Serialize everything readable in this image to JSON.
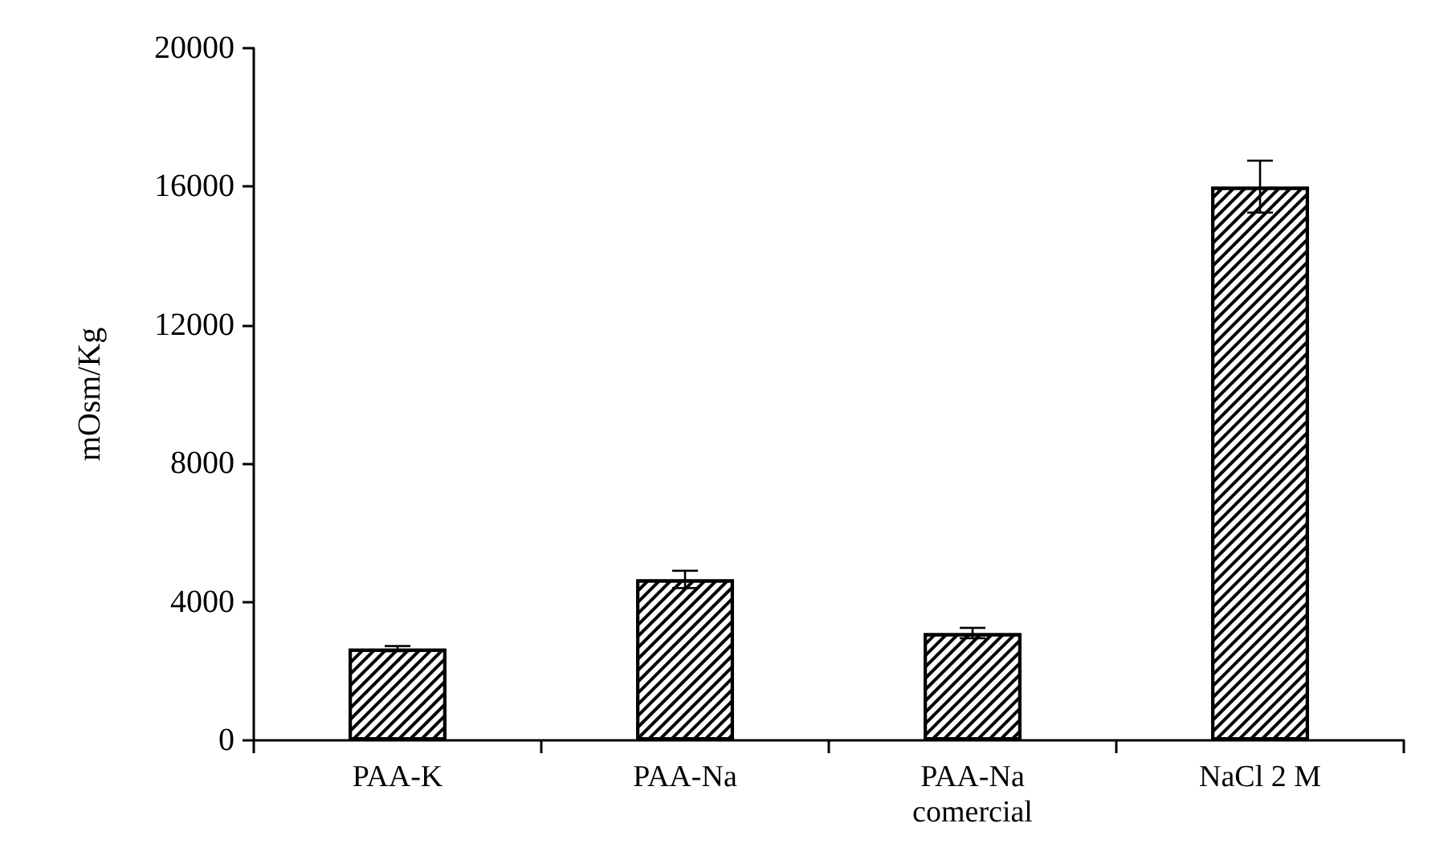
{
  "chart_data": {
    "type": "bar",
    "ylabel": "mOsm/Kg",
    "categories": [
      "PAA-K",
      "PAA-Na",
      "PAA-Na\ncomercial",
      "NaCl 2 M"
    ],
    "values": [
      2650,
      4650,
      3100,
      16000
    ],
    "errors": [
      75,
      250,
      150,
      750
    ],
    "color": "#000000",
    "ylim": [
      0,
      20000
    ],
    "yticks": [
      0,
      4000,
      8000,
      12000,
      16000,
      20000
    ]
  }
}
